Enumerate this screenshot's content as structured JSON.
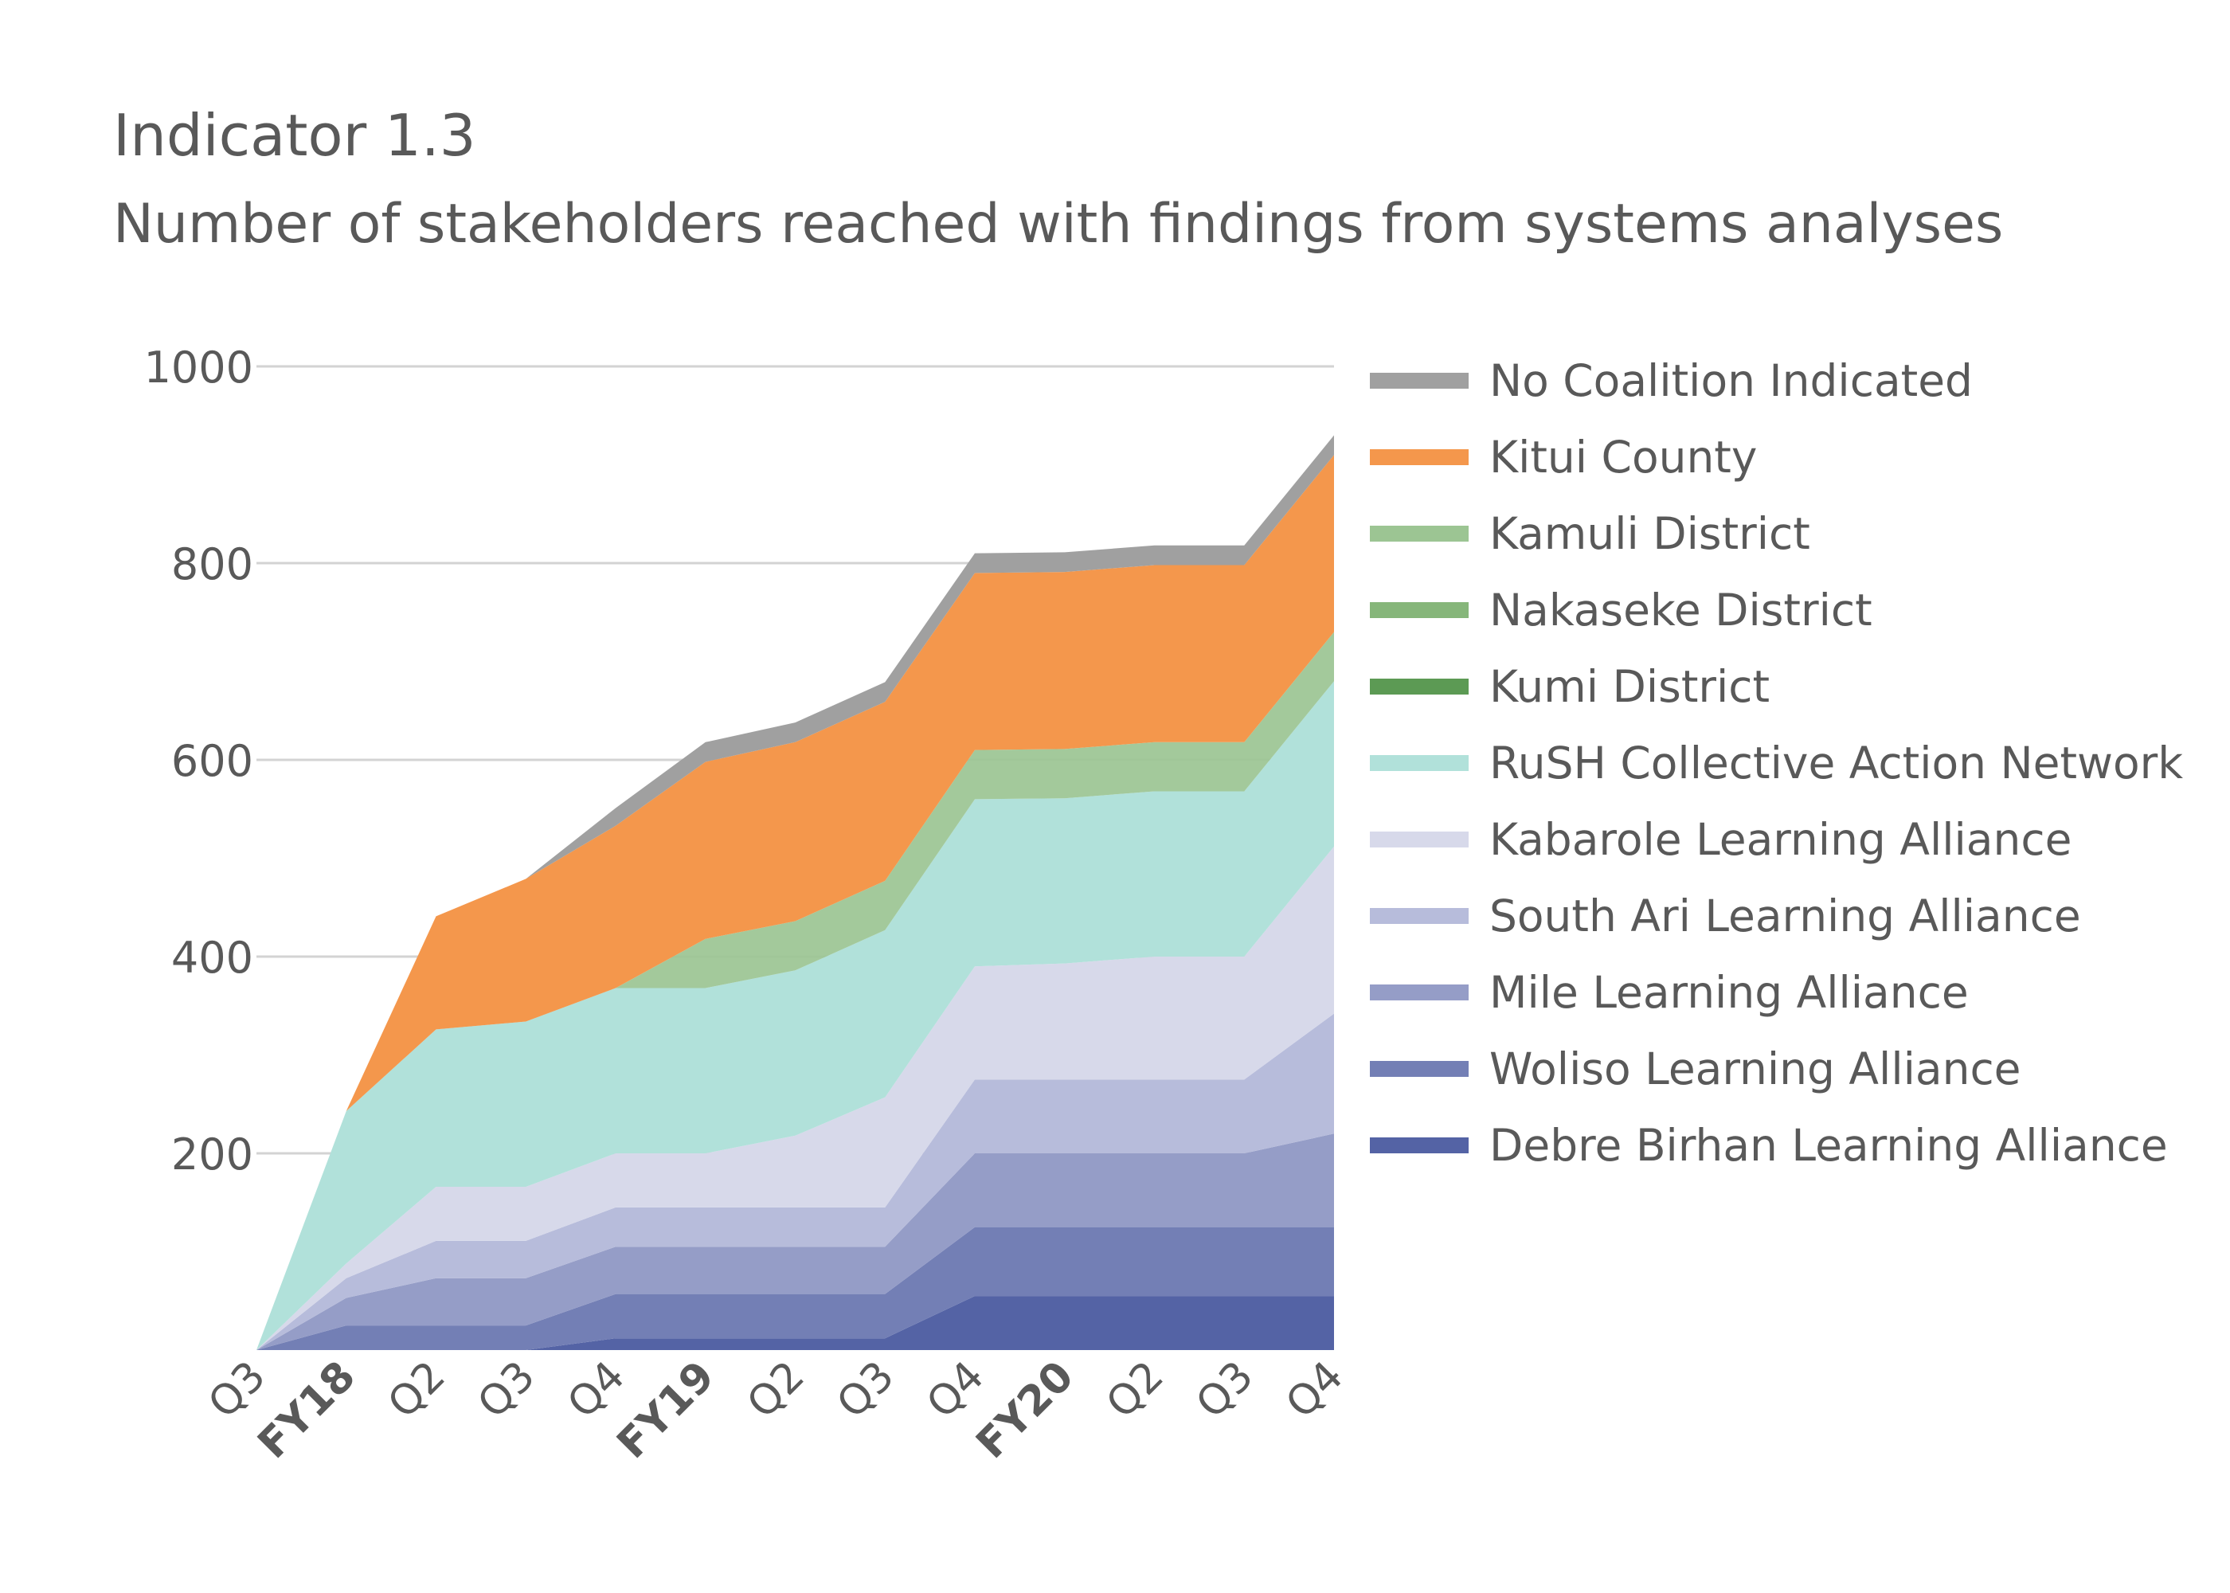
{
  "title": "Indicator 1.3",
  "subtitle": "Number of stakeholders reached with findings from systems analyses",
  "chart_data": {
    "type": "area",
    "stacked": true,
    "title": "Indicator 1.3",
    "subtitle": "Number of stakeholders reached with findings from systems analyses",
    "xlabel": "",
    "ylabel": "",
    "ylim": [
      0,
      1000
    ],
    "yticks": [
      200,
      400,
      600,
      800,
      1000
    ],
    "grid": true,
    "legend_position": "right",
    "categories": [
      "Q3",
      "FY18",
      "Q2",
      "Q3",
      "Q4",
      "FY19",
      "Q2",
      "Q3",
      "Q4",
      "FY20",
      "Q2",
      "Q3",
      "Q4"
    ],
    "bold_categories": [
      1,
      5,
      9
    ],
    "series": [
      {
        "name": "Debre Birhan Learning Alliance",
        "color": "#5463a5",
        "opacity": 1.0,
        "values": [
          0,
          0,
          0,
          0,
          12,
          12,
          12,
          12,
          55,
          55,
          55,
          55,
          55
        ]
      },
      {
        "name": "Woliso Learning Alliance",
        "color": "#737fb5",
        "opacity": 1.0,
        "values": [
          0,
          25,
          25,
          25,
          45,
          45,
          45,
          45,
          70,
          70,
          70,
          70,
          70
        ]
      },
      {
        "name": "Mile Learning Alliance",
        "color": "#959dc7",
        "opacity": 1.0,
        "values": [
          0,
          28,
          48,
          48,
          48,
          48,
          48,
          48,
          75,
          75,
          75,
          75,
          95
        ]
      },
      {
        "name": "South Ari Learning Alliance",
        "color": "#b7bcdb",
        "opacity": 1.0,
        "values": [
          0,
          20,
          38,
          38,
          40,
          40,
          40,
          40,
          75,
          75,
          75,
          75,
          122
        ]
      },
      {
        "name": "Kabarole Learning Alliance",
        "color": "#d7d9ea",
        "opacity": 1.0,
        "values": [
          0,
          15,
          55,
          55,
          55,
          55,
          73,
          112,
          115,
          118,
          125,
          125,
          170
        ]
      },
      {
        "name": "RuSH Collective Action Network",
        "color": "#b1e1da",
        "opacity": 1.0,
        "values": [
          0,
          155,
          160,
          168,
          168,
          168,
          168,
          170,
          170,
          168,
          168,
          168,
          168
        ]
      },
      {
        "name": "Kumi District",
        "color": "#5c9a54",
        "opacity": 1.0,
        "values": [
          0,
          0,
          0,
          0,
          0,
          0,
          0,
          0,
          0,
          0,
          0,
          0,
          0
        ]
      },
      {
        "name": "Nakaseke District",
        "color": "#86b67a",
        "opacity": 1.0,
        "values": [
          0,
          0,
          0,
          0,
          0,
          0,
          0,
          0,
          0,
          0,
          0,
          0,
          0
        ]
      },
      {
        "name": "Kamuli District",
        "color": "#9cc593",
        "opacity": 0.93,
        "values": [
          0,
          0,
          0,
          0,
          0,
          50,
          50,
          50,
          50,
          50,
          50,
          50,
          50
        ]
      },
      {
        "name": "Kitui County",
        "color": "#f4974c",
        "opacity": 1.0,
        "values": [
          0,
          0,
          115,
          145,
          165,
          180,
          182,
          182,
          180,
          180,
          180,
          180,
          180
        ]
      },
      {
        "name": "No Coalition Indicated",
        "color": "#a0a0a0",
        "opacity": 1.0,
        "values": [
          0,
          0,
          0,
          0,
          18,
          20,
          20,
          20,
          20,
          20,
          20,
          20,
          20
        ]
      }
    ]
  }
}
